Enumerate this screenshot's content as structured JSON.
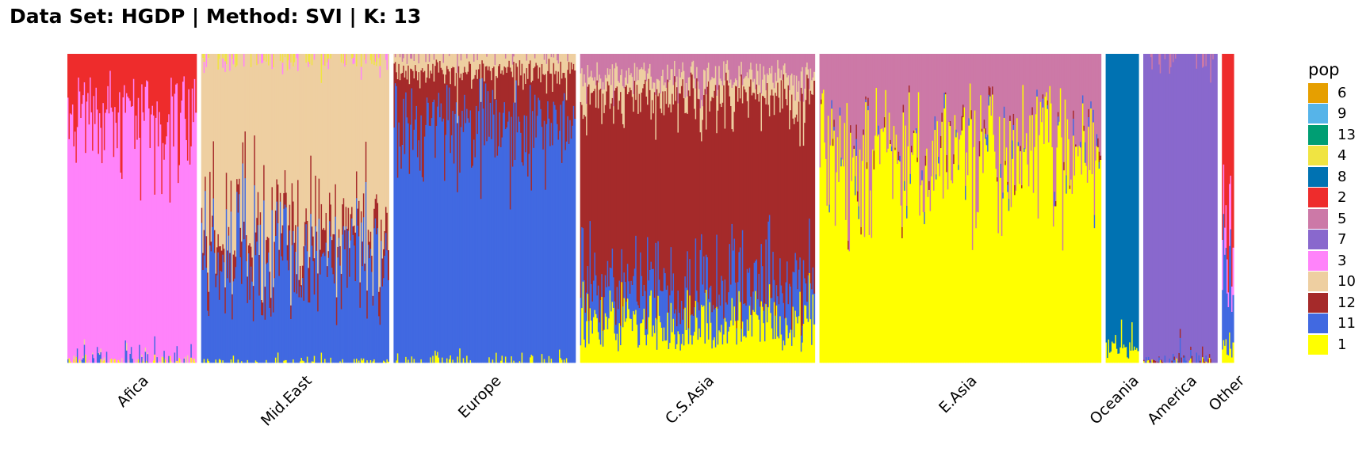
{
  "chart_data": {
    "type": "bar",
    "subtype": "stacked-100-structure-plot",
    "title": "Data Set: HGDP | Method: SVI | K: 13",
    "xlabel": "",
    "ylabel": "",
    "ylim": [
      0,
      1
    ],
    "grid": false,
    "legend": {
      "title": "pop",
      "placement": "right",
      "order": [
        "6",
        "9",
        "13",
        "4",
        "8",
        "2",
        "5",
        "7",
        "3",
        "10",
        "12",
        "11",
        "1"
      ]
    },
    "clusters": [
      {
        "name": "6",
        "color": "#E69F00"
      },
      {
        "name": "9",
        "color": "#56B4E9"
      },
      {
        "name": "13",
        "color": "#009E73"
      },
      {
        "name": "4",
        "color": "#F0E442"
      },
      {
        "name": "8",
        "color": "#0072B2"
      },
      {
        "name": "2",
        "color": "#EE2C2C"
      },
      {
        "name": "5",
        "color": "#CC79A7"
      },
      {
        "name": "7",
        "color": "#8968CD"
      },
      {
        "name": "3",
        "color": "#FF83FA"
      },
      {
        "name": "10",
        "color": "#EECFA1"
      },
      {
        "name": "12",
        "color": "#A52A2A"
      },
      {
        "name": "11",
        "color": "#4169E1"
      },
      {
        "name": "1",
        "color": "#FFFF00"
      }
    ],
    "stack_order_bottom_to_top": [
      "1",
      "11",
      "12",
      "10",
      "3",
      "7",
      "5",
      "2",
      "8",
      "4",
      "13",
      "9",
      "6"
    ],
    "categories": [
      "Afica",
      "Mid.East",
      "Europe",
      "C.S.Asia",
      "E.Asia",
      "Oceania",
      "America",
      "Other"
    ],
    "groups": [
      {
        "name": "Afica",
        "approx_individuals": 110,
        "mean_proportions": {
          "2": 0.18,
          "3": 0.77,
          "11": 0.03,
          "1": 0.01,
          "10": 0.01
        }
      },
      {
        "name": "Mid.East",
        "approx_individuals": 160,
        "mean_proportions": {
          "10": 0.52,
          "11": 0.33,
          "12": 0.08,
          "3": 0.03,
          "1": 0.01,
          "4": 0.03
        }
      },
      {
        "name": "Europe",
        "approx_individuals": 155,
        "mean_proportions": {
          "11": 0.74,
          "12": 0.17,
          "10": 0.05,
          "1": 0.02,
          "5": 0.02
        }
      },
      {
        "name": "C.S.Asia",
        "approx_individuals": 200,
        "mean_proportions": {
          "12": 0.62,
          "11": 0.12,
          "1": 0.12,
          "10": 0.07,
          "5": 0.07
        }
      },
      {
        "name": "E.Asia",
        "approx_individuals": 240,
        "mean_proportions": {
          "1": 0.66,
          "5": 0.29,
          "11": 0.03,
          "12": 0.02
        }
      },
      {
        "name": "Oceania",
        "approx_individuals": 28,
        "mean_proportions": {
          "8": 0.95,
          "1": 0.05
        }
      },
      {
        "name": "America",
        "approx_individuals": 63,
        "mean_proportions": {
          "7": 0.92,
          "5": 0.04,
          "11": 0.02,
          "12": 0.01,
          "1": 0.01
        }
      },
      {
        "name": "Other",
        "approx_individuals": 10,
        "mean_proportions": {
          "2": 0.6,
          "11": 0.25,
          "3": 0.1,
          "1": 0.05
        }
      }
    ]
  }
}
